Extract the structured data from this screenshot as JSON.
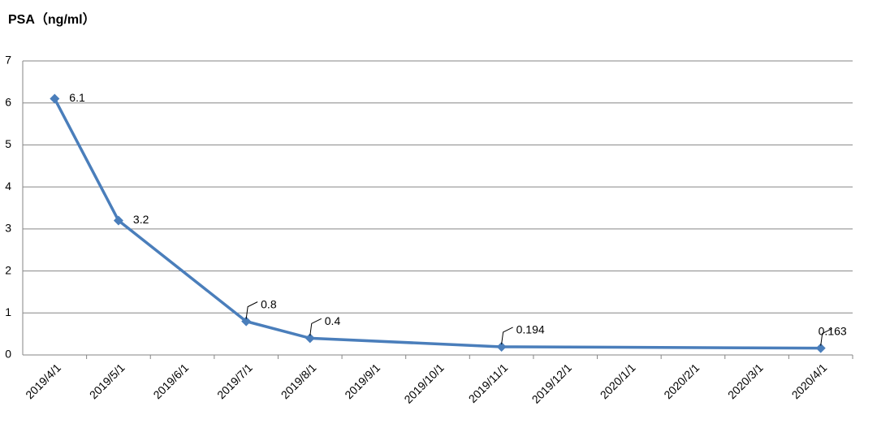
{
  "chart_data": {
    "type": "line",
    "title": "PSA（ng/ml）",
    "categories": [
      "2019/4/1",
      "2019/5/1",
      "2019/6/1",
      "2019/7/1",
      "2019/8/1",
      "2019/9/1",
      "2019/10/1",
      "2019/11/1",
      "2019/12/1",
      "2020/1/1",
      "2020/2/1",
      "2020/3/1",
      "2020/4/1"
    ],
    "series": [
      {
        "x": [
          "2019/4/1",
          "2019/5/1",
          "2019/7/1",
          "2019/8/1",
          "2019/11/1",
          "2020/4/1"
        ],
        "values": [
          6.1,
          3.2,
          0.8,
          0.4,
          0.194,
          0.163
        ],
        "color": "#4a7ebb"
      }
    ],
    "ylim": [
      0,
      7
    ],
    "yticks": [
      0,
      1,
      2,
      3,
      4,
      5,
      6,
      7
    ],
    "grid": true
  }
}
